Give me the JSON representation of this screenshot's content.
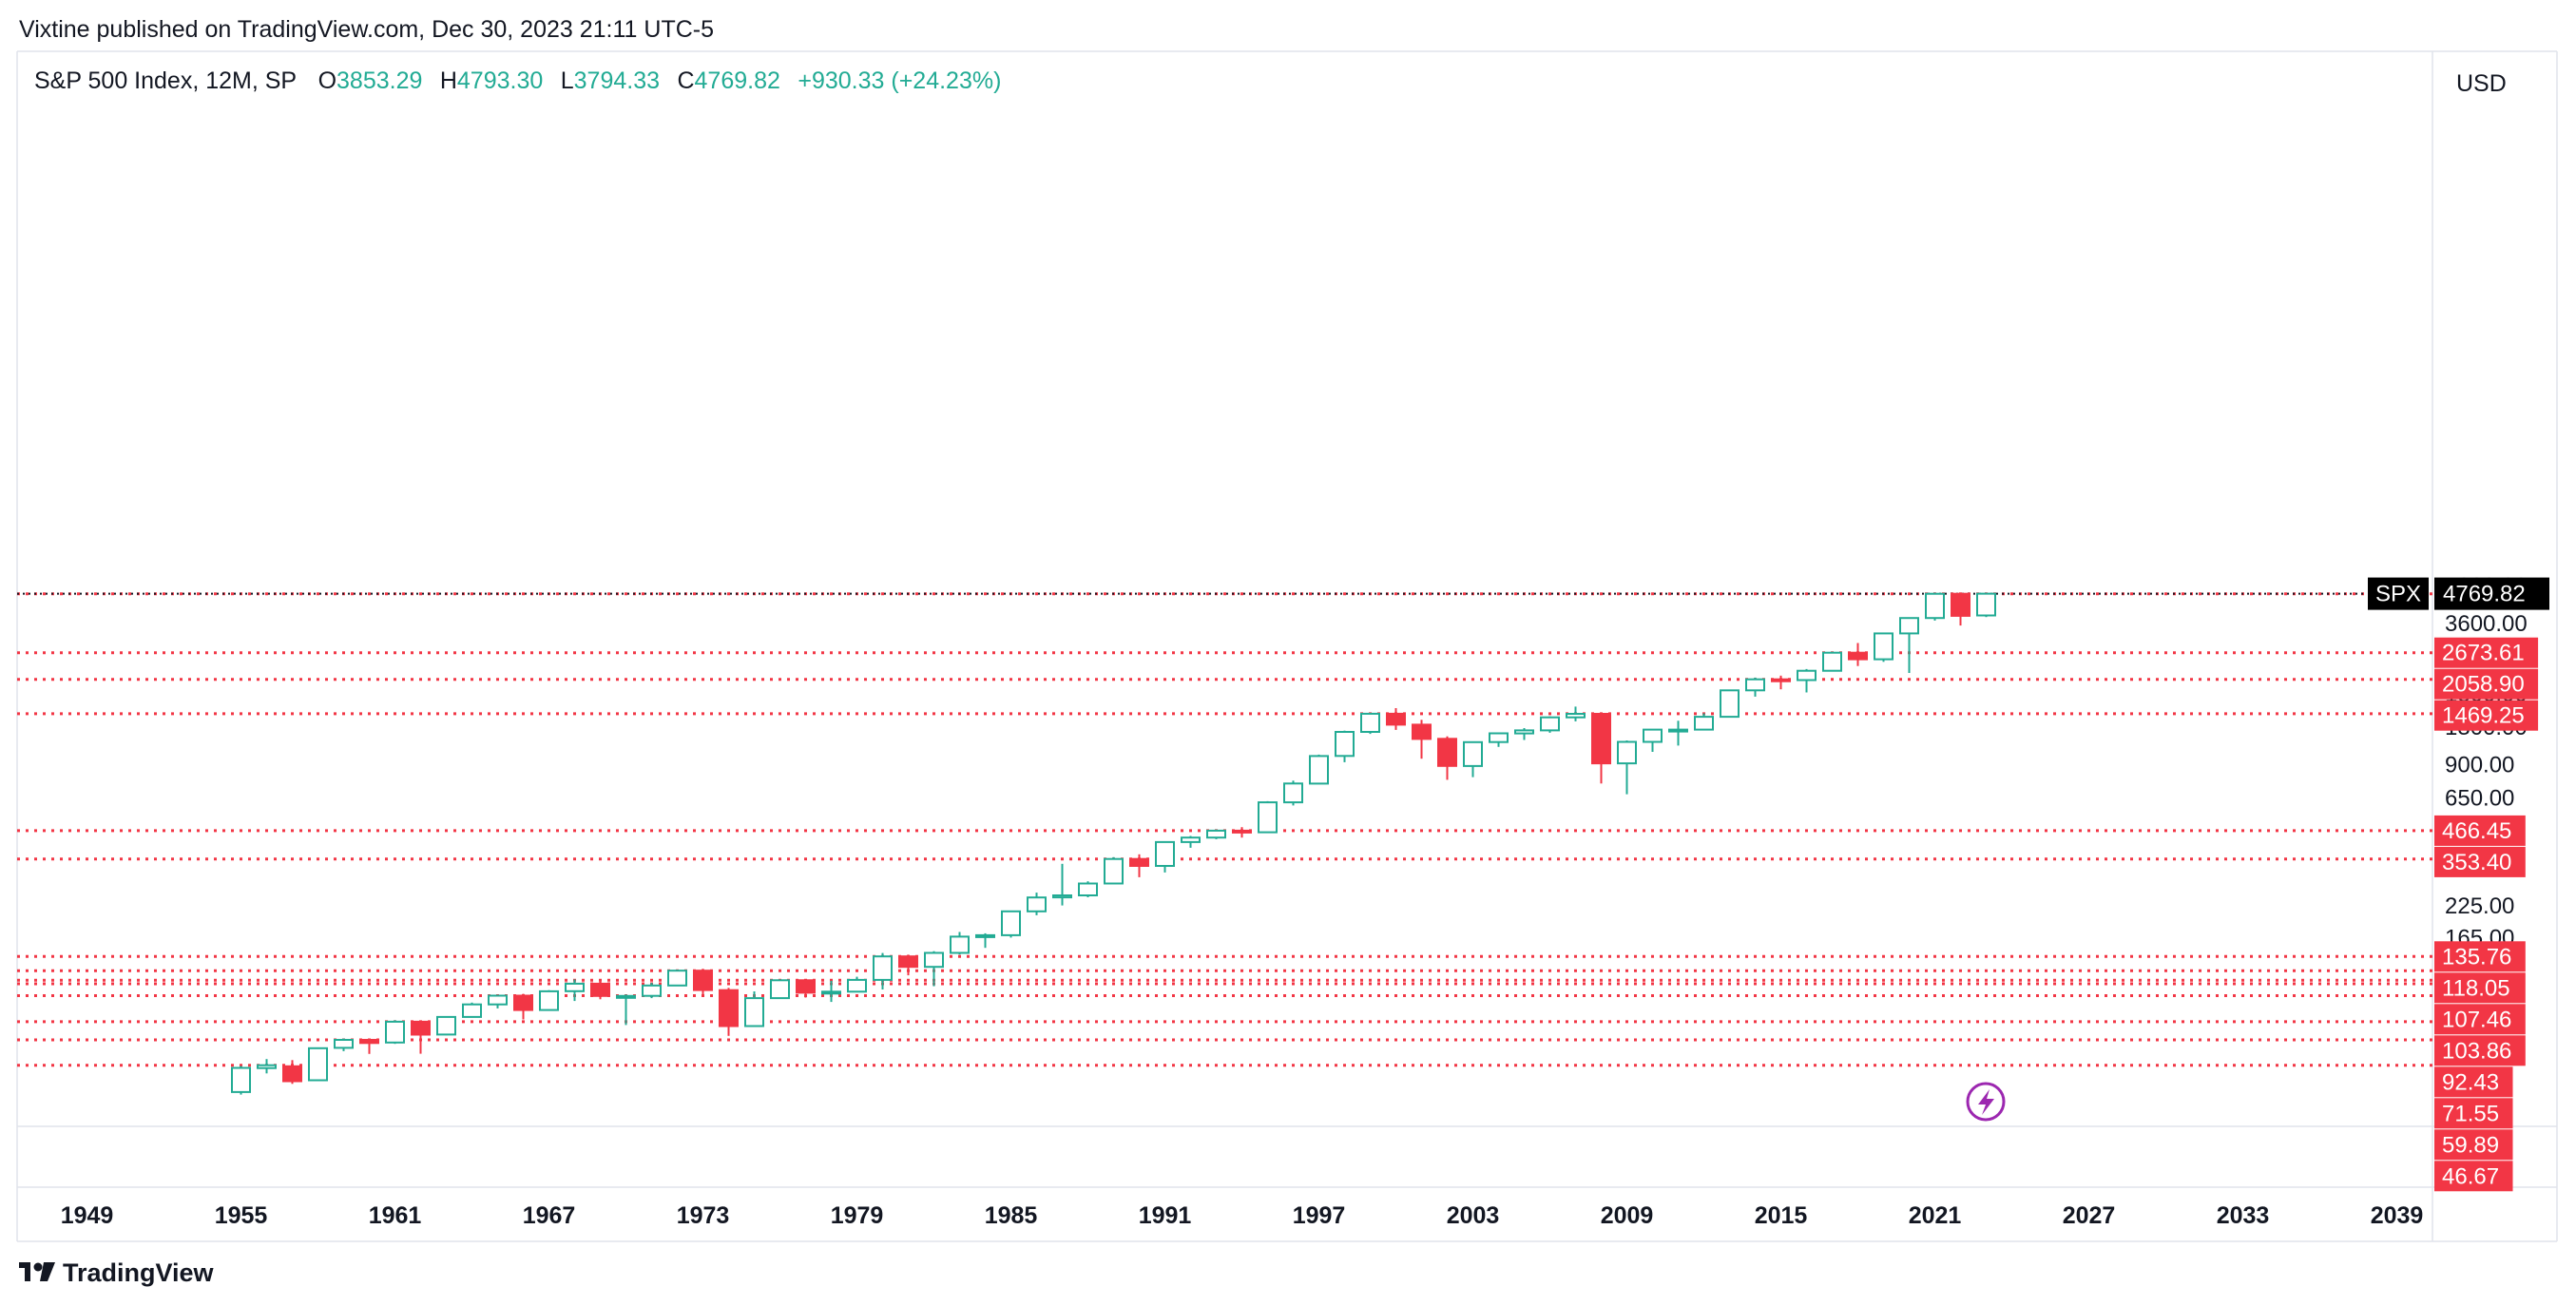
{
  "header": {
    "published_text": "Vixtine published on TradingView.com, Dec 30, 2023 21:11 UTC-5"
  },
  "symbol_bar": {
    "title": "S&P 500 Index, 12M, SP",
    "open_label": "O",
    "open": "3853.29",
    "high_label": "H",
    "high": "4793.30",
    "low_label": "L",
    "low": "3794.33",
    "close_label": "C",
    "close": "4769.82",
    "change": "+930.33 (+24.23%)"
  },
  "currency_button": "USD",
  "last_price": {
    "ticker": "SPX",
    "value": "4769.82"
  },
  "footer_logo": {
    "text": "TradingView",
    "icon": "tradingview-logo-icon"
  },
  "flash_icon": "lightning-icon",
  "colors": {
    "up": "#22ab94",
    "down": "#f23645",
    "level_line": "#f23645",
    "level_label_bg": "#f23645",
    "last_price_bg": "#000000",
    "flash": "#9c27b0"
  },
  "chart_data": {
    "type": "candlestick",
    "title": "S&P 500 Index, 12M, SP",
    "y_scale": "log",
    "ylim": [
      40,
      5200
    ],
    "y_ticks": [
      "5200.00",
      "3600.00",
      "1800.00",
      "1300.00",
      "900.00",
      "650.00",
      "325.00",
      "225.00",
      "165.00"
    ],
    "x_ticks": [
      "1949",
      "1955",
      "1961",
      "1967",
      "1973",
      "1979",
      "1985",
      "1991",
      "1997",
      "2003",
      "2009",
      "2015",
      "2021",
      "2027",
      "2033",
      "2039"
    ],
    "x_range": [
      1946.4,
      2040.6
    ],
    "grid": false,
    "levels": [
      "4766.19",
      "2673.61",
      "2058.90",
      "1469.25",
      "466.45",
      "353.40",
      "135.76",
      "118.05",
      "107.46",
      "103.86",
      "92.43",
      "71.55",
      "59.89",
      "46.67"
    ],
    "candles": [
      {
        "year": 1955,
        "open": 35.9,
        "high": 46.4,
        "low": 35.0,
        "close": 45.5
      },
      {
        "year": 1956,
        "open": 45.4,
        "high": 49.6,
        "low": 43.1,
        "close": 46.7
      },
      {
        "year": 1957,
        "open": 46.2,
        "high": 49.1,
        "low": 38.9,
        "close": 39.9
      },
      {
        "year": 1958,
        "open": 40.3,
        "high": 55.2,
        "low": 40.3,
        "close": 55.2
      },
      {
        "year": 1959,
        "open": 55.4,
        "high": 60.7,
        "low": 53.6,
        "close": 59.9
      },
      {
        "year": 1960,
        "open": 59.9,
        "high": 60.4,
        "low": 52.2,
        "close": 58.1
      },
      {
        "year": 1961,
        "open": 58.4,
        "high": 72.6,
        "low": 57.6,
        "close": 71.6
      },
      {
        "year": 1962,
        "open": 71.6,
        "high": 71.1,
        "low": 52.3,
        "close": 63.1
      },
      {
        "year": 1963,
        "open": 63.1,
        "high": 75.0,
        "low": 62.7,
        "close": 75.0
      },
      {
        "year": 1964,
        "open": 75.0,
        "high": 86.3,
        "low": 75.0,
        "close": 84.8
      },
      {
        "year": 1965,
        "open": 84.8,
        "high": 92.6,
        "low": 81.6,
        "close": 92.4
      },
      {
        "year": 1966,
        "open": 92.4,
        "high": 94.1,
        "low": 73.2,
        "close": 80.3
      },
      {
        "year": 1967,
        "open": 80.3,
        "high": 97.6,
        "low": 80.4,
        "close": 96.5
      },
      {
        "year": 1968,
        "open": 96.5,
        "high": 108.4,
        "low": 87.7,
        "close": 103.9
      },
      {
        "year": 1969,
        "open": 103.9,
        "high": 106.2,
        "low": 89.2,
        "close": 92.1
      },
      {
        "year": 1970,
        "open": 92.1,
        "high": 93.5,
        "low": 69.3,
        "close": 92.2
      },
      {
        "year": 1971,
        "open": 92.2,
        "high": 104.8,
        "low": 90.2,
        "close": 102.1
      },
      {
        "year": 1972,
        "open": 102.1,
        "high": 119.1,
        "low": 101.7,
        "close": 118.1
      },
      {
        "year": 1973,
        "open": 118.1,
        "high": 120.2,
        "low": 92.2,
        "close": 97.6
      },
      {
        "year": 1974,
        "open": 97.6,
        "high": 99.8,
        "low": 62.3,
        "close": 68.6
      },
      {
        "year": 1975,
        "open": 68.6,
        "high": 96.4,
        "low": 70.0,
        "close": 90.2
      },
      {
        "year": 1976,
        "open": 90.2,
        "high": 107.8,
        "low": 90.9,
        "close": 107.5
      },
      {
        "year": 1977,
        "open": 107.5,
        "high": 107.0,
        "low": 90.7,
        "close": 95.1
      },
      {
        "year": 1978,
        "open": 95.1,
        "high": 106.9,
        "low": 86.9,
        "close": 96.1
      },
      {
        "year": 1979,
        "open": 96.1,
        "high": 111.3,
        "low": 96.1,
        "close": 107.9
      },
      {
        "year": 1980,
        "open": 107.9,
        "high": 140.5,
        "low": 98.2,
        "close": 135.8
      },
      {
        "year": 1981,
        "open": 135.8,
        "high": 138.1,
        "low": 112.8,
        "close": 122.6
      },
      {
        "year": 1982,
        "open": 122.6,
        "high": 143.0,
        "low": 101.4,
        "close": 140.6
      },
      {
        "year": 1983,
        "open": 140.6,
        "high": 172.7,
        "low": 138.3,
        "close": 164.9
      },
      {
        "year": 1984,
        "open": 164.9,
        "high": 170.4,
        "low": 147.8,
        "close": 167.2
      },
      {
        "year": 1985,
        "open": 167.2,
        "high": 212.0,
        "low": 163.4,
        "close": 211.3
      },
      {
        "year": 1986,
        "open": 211.3,
        "high": 254.0,
        "low": 203.5,
        "close": 242.2
      },
      {
        "year": 1987,
        "open": 242.2,
        "high": 336.8,
        "low": 223.9,
        "close": 247.1
      },
      {
        "year": 1988,
        "open": 247.1,
        "high": 283.7,
        "low": 242.6,
        "close": 277.7
      },
      {
        "year": 1989,
        "open": 277.7,
        "high": 359.8,
        "low": 275.3,
        "close": 353.4
      },
      {
        "year": 1990,
        "open": 353.4,
        "high": 369.8,
        "low": 295.5,
        "close": 330.2
      },
      {
        "year": 1991,
        "open": 330.2,
        "high": 417.1,
        "low": 309.4,
        "close": 417.1
      },
      {
        "year": 1992,
        "open": 417.1,
        "high": 442.7,
        "low": 394.5,
        "close": 435.7
      },
      {
        "year": 1993,
        "open": 435.7,
        "high": 471.3,
        "low": 429.1,
        "close": 466.5
      },
      {
        "year": 1994,
        "open": 466.5,
        "high": 482.9,
        "low": 435.9,
        "close": 459.3
      },
      {
        "year": 1995,
        "open": 459.3,
        "high": 622.9,
        "low": 457.2,
        "close": 615.9
      },
      {
        "year": 1996,
        "open": 615.9,
        "high": 762.1,
        "low": 597.3,
        "close": 740.7
      },
      {
        "year": 1997,
        "open": 740.7,
        "high": 983.8,
        "low": 737.0,
        "close": 970.4
      },
      {
        "year": 1998,
        "open": 970.4,
        "high": 1244.9,
        "low": 912.8,
        "close": 1229.2
      },
      {
        "year": 1999,
        "open": 1229.2,
        "high": 1473.1,
        "low": 1205.5,
        "close": 1469.3
      },
      {
        "year": 2000,
        "open": 1469.3,
        "high": 1552.9,
        "low": 1254.1,
        "close": 1320.3
      },
      {
        "year": 2001,
        "open": 1320.3,
        "high": 1383.4,
        "low": 944.8,
        "close": 1148.1
      },
      {
        "year": 2002,
        "open": 1148.1,
        "high": 1176.9,
        "low": 768.6,
        "close": 879.8
      },
      {
        "year": 2003,
        "open": 879.8,
        "high": 1112.6,
        "low": 788.9,
        "close": 1111.9
      },
      {
        "year": 2004,
        "open": 1111.9,
        "high": 1217.3,
        "low": 1060.7,
        "close": 1211.9
      },
      {
        "year": 2005,
        "open": 1211.9,
        "high": 1275.8,
        "low": 1136.2,
        "close": 1248.3
      },
      {
        "year": 2006,
        "open": 1248.3,
        "high": 1431.8,
        "low": 1219.3,
        "close": 1418.3
      },
      {
        "year": 2007,
        "open": 1418.3,
        "high": 1576.1,
        "low": 1363.9,
        "close": 1468.4
      },
      {
        "year": 2008,
        "open": 1468.4,
        "high": 1471.8,
        "low": 741.0,
        "close": 903.3
      },
      {
        "year": 2009,
        "open": 903.3,
        "high": 1130.4,
        "low": 666.8,
        "close": 1115.1
      },
      {
        "year": 2010,
        "open": 1115.1,
        "high": 1262.6,
        "low": 1010.9,
        "close": 1257.6
      },
      {
        "year": 2011,
        "open": 1257.6,
        "high": 1370.6,
        "low": 1074.8,
        "close": 1257.6
      },
      {
        "year": 2012,
        "open": 1257.6,
        "high": 1474.5,
        "low": 1258.9,
        "close": 1426.2
      },
      {
        "year": 2013,
        "open": 1426.2,
        "high": 1849.4,
        "low": 1426.2,
        "close": 1848.4
      },
      {
        "year": 2014,
        "open": 1848.4,
        "high": 2093.6,
        "low": 1737.9,
        "close": 2058.9
      },
      {
        "year": 2015,
        "open": 2058.9,
        "high": 2134.7,
        "low": 1867.0,
        "close": 2043.9
      },
      {
        "year": 2016,
        "open": 2043.9,
        "high": 2277.5,
        "low": 1810.1,
        "close": 2238.8
      },
      {
        "year": 2017,
        "open": 2238.8,
        "high": 2694.9,
        "low": 2245.1,
        "close": 2673.6
      },
      {
        "year": 2018,
        "open": 2673.6,
        "high": 2940.9,
        "low": 2346.6,
        "close": 2506.9
      },
      {
        "year": 2019,
        "open": 2506.9,
        "high": 3247.9,
        "low": 2443.9,
        "close": 3230.8
      },
      {
        "year": 2020,
        "open": 3230.8,
        "high": 3760.2,
        "low": 2191.9,
        "close": 3756.1
      },
      {
        "year": 2021,
        "open": 3756.1,
        "high": 4808.9,
        "low": 3662.7,
        "close": 4766.2
      },
      {
        "year": 2022,
        "open": 4766.2,
        "high": 4818.6,
        "low": 3491.6,
        "close": 3839.5
      },
      {
        "year": 2023,
        "open": 3853.3,
        "high": 4793.3,
        "low": 3794.3,
        "close": 4769.8
      }
    ]
  }
}
